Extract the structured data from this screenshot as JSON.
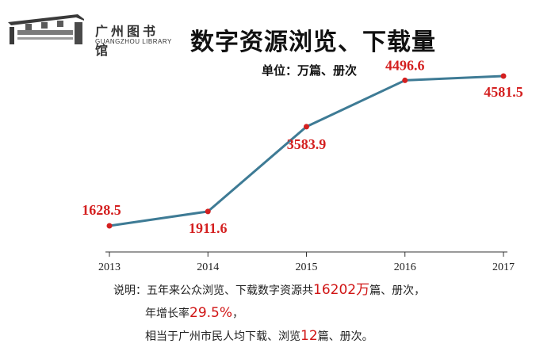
{
  "logo": {
    "name_cn": "广州图书馆",
    "name_en": "GUANGZHOU LIBRARY"
  },
  "title": "数字资源浏览、下载量",
  "unit_label": "单位：万篇、册次",
  "colors": {
    "line": "#3e7b95",
    "point": "#d42020",
    "label": "#d42020",
    "axis": "#333333"
  },
  "chart_data": {
    "type": "line",
    "title": "数字资源浏览、下载量",
    "subtitle": "单位：万篇、册次",
    "xlabel": "",
    "ylabel": "",
    "categories": [
      "2013",
      "2014",
      "2015",
      "2016",
      "2017"
    ],
    "series": [
      {
        "values": [
          1628.5,
          1911.6,
          3583.9,
          4496.6,
          4581.5
        ]
      }
    ],
    "data_labels": [
      "1628.5",
      "1911.6",
      "3583.9",
      "4496.6",
      "4581.5"
    ],
    "ylim": [
      1000,
      5000
    ],
    "grid": false,
    "legend": "none"
  },
  "note": {
    "prefix": "说明：",
    "line1_a": "五年来公众浏览、下载数字资源共",
    "line1_num": "16202万",
    "line1_b": "篇、册次，",
    "line2_a": "年增长率",
    "line2_num": "29.5%",
    "line2_b": "，",
    "line3_a": "相当于广州市民人均下载、浏览",
    "line3_num": "12",
    "line3_b": "篇、册次。"
  }
}
